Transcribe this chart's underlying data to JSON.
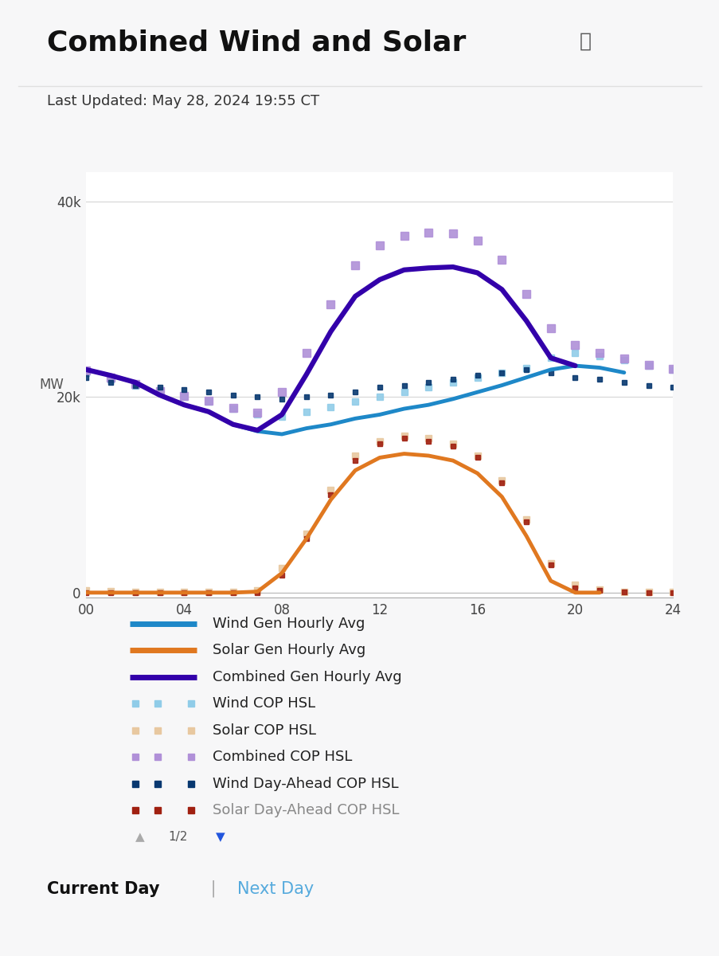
{
  "title": "Combined Wind and Solar",
  "subtitle": "Last Updated: May 28, 2024 19:55 CT",
  "ylabel": "MW",
  "xlabel_ticks": [
    "00",
    "04",
    "08",
    "12",
    "16",
    "20",
    "24"
  ],
  "ytick_labels": [
    "0",
    "20k",
    "40k"
  ],
  "xlim": [
    0,
    24
  ],
  "ylim": [
    -500,
    43000
  ],
  "bg_color": "#f7f7f8",
  "plot_bg_color": "#ffffff",
  "wind_gen_color": "#1e88c8",
  "solar_gen_color": "#e07820",
  "combined_gen_color": "#3300aa",
  "wind_cop_color": "#90cce8",
  "solar_cop_color": "#e8c8a0",
  "combined_cop_color": "#b090d8",
  "wind_da_color": "#083870",
  "solar_da_color": "#a02010",
  "hours": [
    0,
    1,
    2,
    3,
    4,
    5,
    6,
    7,
    8,
    9,
    10,
    11,
    12,
    13,
    14,
    15,
    16,
    17,
    18,
    19,
    20,
    21,
    22,
    23,
    24
  ],
  "wind_gen": [
    22800,
    22200,
    21500,
    20200,
    19200,
    18500,
    17200,
    16500,
    16200,
    16800,
    17200,
    17800,
    18200,
    18800,
    19200,
    19800,
    20500,
    21200,
    22000,
    22800,
    23200,
    23000,
    22500,
    null,
    null
  ],
  "solar_gen": [
    0,
    0,
    0,
    0,
    0,
    0,
    0,
    100,
    2000,
    5500,
    9500,
    12500,
    13800,
    14200,
    14000,
    13500,
    12200,
    9800,
    5800,
    1200,
    0,
    0,
    null,
    null,
    null
  ],
  "combined_gen": [
    22800,
    22200,
    21500,
    20200,
    19200,
    18500,
    17200,
    16600,
    18200,
    22300,
    26700,
    30300,
    32000,
    33000,
    33200,
    33300,
    32700,
    31000,
    27800,
    24000,
    23200,
    null,
    null,
    null,
    null
  ],
  "wind_cop": [
    22500,
    21800,
    21200,
    20500,
    20000,
    19500,
    18800,
    18200,
    18000,
    18500,
    19000,
    19500,
    20000,
    20500,
    21000,
    21500,
    22000,
    22500,
    23000,
    24000,
    24500,
    24200,
    23800,
    23200,
    22800
  ],
  "solar_cop": [
    200,
    150,
    100,
    100,
    100,
    100,
    100,
    200,
    2500,
    6000,
    10500,
    14000,
    15500,
    16000,
    15800,
    15200,
    14000,
    11500,
    7500,
    3000,
    800,
    300,
    100,
    100,
    100
  ],
  "combined_cop": [
    22700,
    21950,
    21300,
    20600,
    20100,
    19600,
    18900,
    18400,
    20500,
    24500,
    29500,
    33500,
    35500,
    36500,
    36800,
    36700,
    36000,
    34000,
    30500,
    27000,
    25300,
    24500,
    23900,
    23300,
    22900
  ],
  "wind_da": [
    22000,
    21500,
    21200,
    21000,
    20800,
    20500,
    20200,
    20000,
    19800,
    20000,
    20200,
    20500,
    21000,
    21200,
    21500,
    21800,
    22200,
    22500,
    22800,
    22500,
    22000,
    21800,
    21500,
    21200,
    21000
  ],
  "solar_da": [
    0,
    0,
    0,
    0,
    0,
    0,
    0,
    0,
    1800,
    5500,
    10000,
    13500,
    15200,
    15800,
    15500,
    15000,
    13800,
    11200,
    7200,
    2800,
    500,
    200,
    100,
    0,
    0
  ],
  "footer_current": "Current Day",
  "footer_next": "Next Day"
}
